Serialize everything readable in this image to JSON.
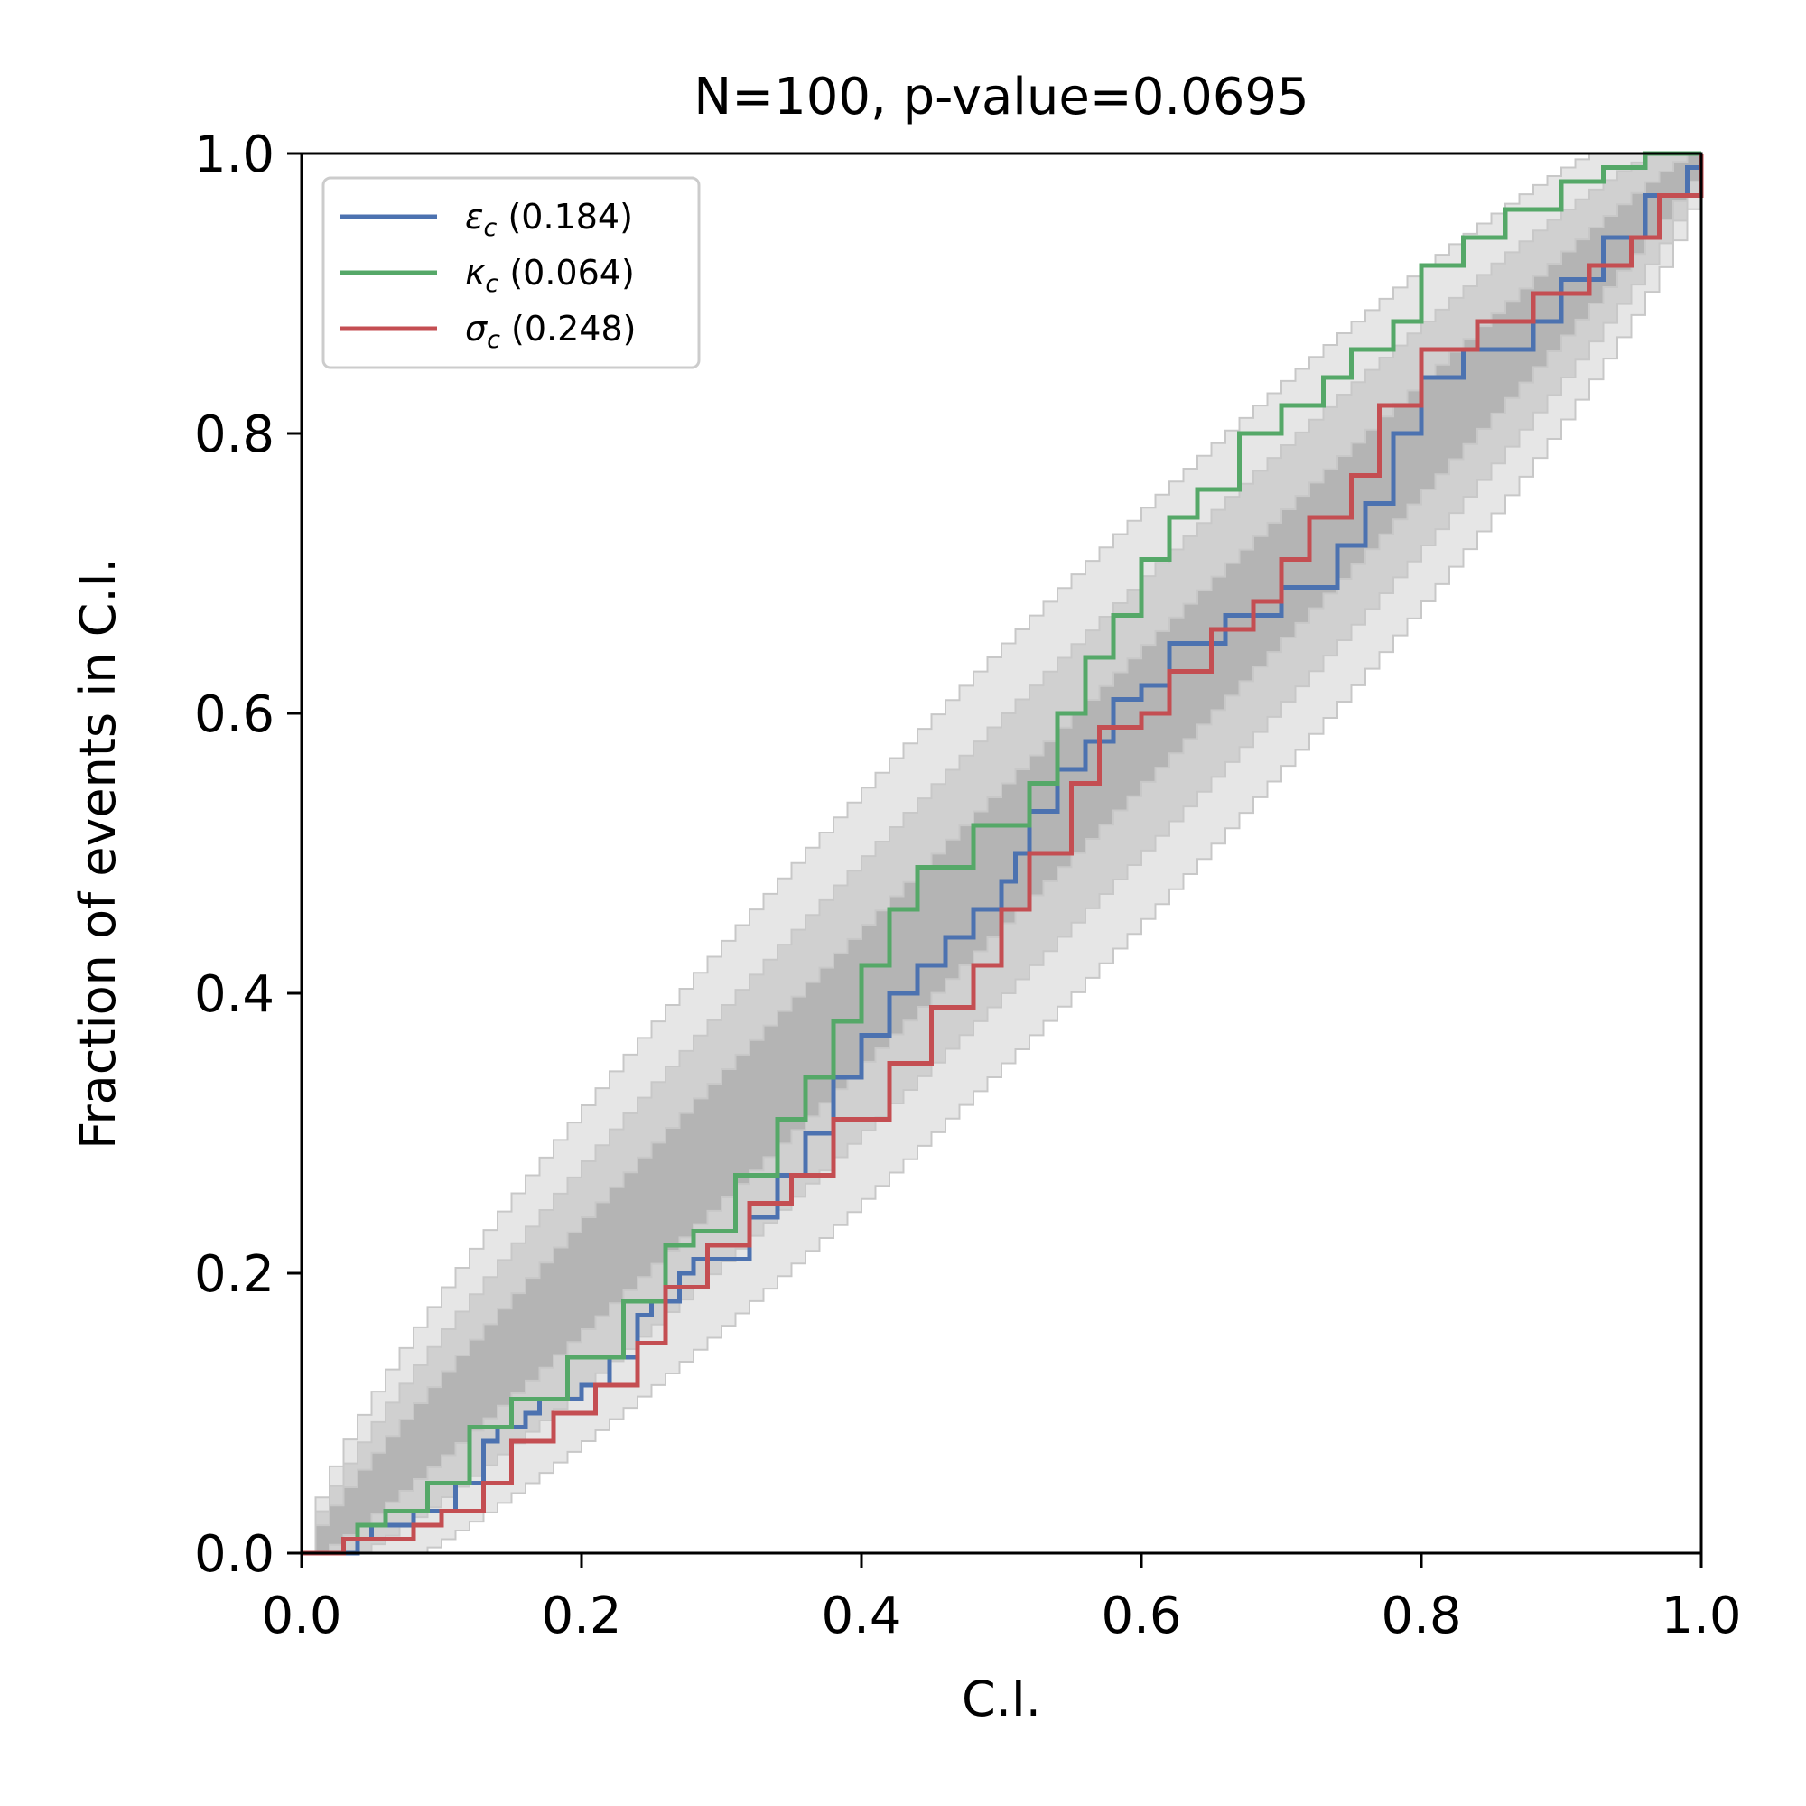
{
  "chart_data": {
    "type": "line",
    "title": "N=100, p-value=0.0695",
    "xlabel": "C.I.",
    "ylabel": "Fraction of events in C.I.",
    "xlim": [
      0,
      1
    ],
    "ylim": [
      0,
      1
    ],
    "xticks": [
      "0.0",
      "0.2",
      "0.4",
      "0.6",
      "0.8",
      "1.0"
    ],
    "yticks": [
      "0.0",
      "0.2",
      "0.4",
      "0.6",
      "0.8",
      "1.0"
    ],
    "grid": false,
    "legend_position": "top-left",
    "confidence_bands": {
      "description_levels": [
        "1-sigma",
        "2-sigma",
        "3-sigma"
      ],
      "colors": [
        "#b4b4b4",
        "#d0d0d0",
        "#e6e6e6"
      ],
      "n_events": 100
    },
    "series": [
      {
        "name": "εc (0.184)",
        "symbol": "ε",
        "subscript": "c",
        "pvalue_text": "(0.184)",
        "color": "#4c72b0",
        "x": [
          0,
          0.04,
          0.05,
          0.08,
          0.11,
          0.13,
          0.14,
          0.16,
          0.17,
          0.2,
          0.22,
          0.24,
          0.25,
          0.27,
          0.28,
          0.32,
          0.34,
          0.36,
          0.38,
          0.4,
          0.42,
          0.44,
          0.46,
          0.48,
          0.5,
          0.51,
          0.52,
          0.54,
          0.56,
          0.58,
          0.6,
          0.62,
          0.66,
          0.7,
          0.74,
          0.76,
          0.78,
          0.8,
          0.83,
          0.88,
          0.9,
          0.93,
          0.96,
          0.99,
          1.0
        ],
        "y": [
          0,
          0.01,
          0.02,
          0.03,
          0.05,
          0.08,
          0.09,
          0.1,
          0.11,
          0.12,
          0.14,
          0.17,
          0.18,
          0.2,
          0.21,
          0.24,
          0.27,
          0.3,
          0.34,
          0.37,
          0.4,
          0.42,
          0.44,
          0.46,
          0.48,
          0.5,
          0.53,
          0.56,
          0.58,
          0.61,
          0.62,
          0.65,
          0.67,
          0.69,
          0.72,
          0.75,
          0.8,
          0.84,
          0.86,
          0.88,
          0.91,
          0.94,
          0.97,
          0.99,
          1.0
        ]
      },
      {
        "name": "κc (0.064)",
        "symbol": "κ",
        "subscript": "c",
        "pvalue_text": "(0.064)",
        "color": "#55a868",
        "x": [
          0,
          0.03,
          0.04,
          0.06,
          0.09,
          0.12,
          0.15,
          0.19,
          0.23,
          0.26,
          0.28,
          0.31,
          0.34,
          0.36,
          0.38,
          0.4,
          0.42,
          0.44,
          0.48,
          0.52,
          0.54,
          0.56,
          0.58,
          0.6,
          0.62,
          0.64,
          0.67,
          0.7,
          0.73,
          0.75,
          0.78,
          0.8,
          0.83,
          0.86,
          0.9,
          0.93,
          0.96,
          1.0
        ],
        "y": [
          0,
          0.01,
          0.02,
          0.03,
          0.05,
          0.09,
          0.11,
          0.14,
          0.18,
          0.22,
          0.23,
          0.27,
          0.31,
          0.34,
          0.38,
          0.42,
          0.46,
          0.49,
          0.52,
          0.55,
          0.6,
          0.64,
          0.67,
          0.71,
          0.74,
          0.76,
          0.8,
          0.82,
          0.84,
          0.86,
          0.88,
          0.92,
          0.94,
          0.96,
          0.98,
          0.99,
          1.0,
          1.0
        ]
      },
      {
        "name": "σc (0.248)",
        "symbol": "σ",
        "subscript": "c",
        "pvalue_text": "(0.248)",
        "color": "#c44e52",
        "x": [
          0,
          0.03,
          0.08,
          0.1,
          0.13,
          0.15,
          0.18,
          0.21,
          0.24,
          0.26,
          0.29,
          0.32,
          0.35,
          0.38,
          0.42,
          0.45,
          0.48,
          0.5,
          0.52,
          0.55,
          0.57,
          0.6,
          0.62,
          0.65,
          0.68,
          0.7,
          0.72,
          0.75,
          0.77,
          0.8,
          0.84,
          0.88,
          0.92,
          0.95,
          0.97,
          1.0
        ],
        "y": [
          0,
          0.01,
          0.02,
          0.03,
          0.05,
          0.08,
          0.1,
          0.12,
          0.15,
          0.19,
          0.22,
          0.25,
          0.27,
          0.31,
          0.35,
          0.39,
          0.42,
          0.46,
          0.5,
          0.55,
          0.59,
          0.6,
          0.63,
          0.66,
          0.68,
          0.71,
          0.74,
          0.77,
          0.82,
          0.86,
          0.88,
          0.9,
          0.92,
          0.94,
          0.97,
          1.0
        ]
      }
    ]
  }
}
